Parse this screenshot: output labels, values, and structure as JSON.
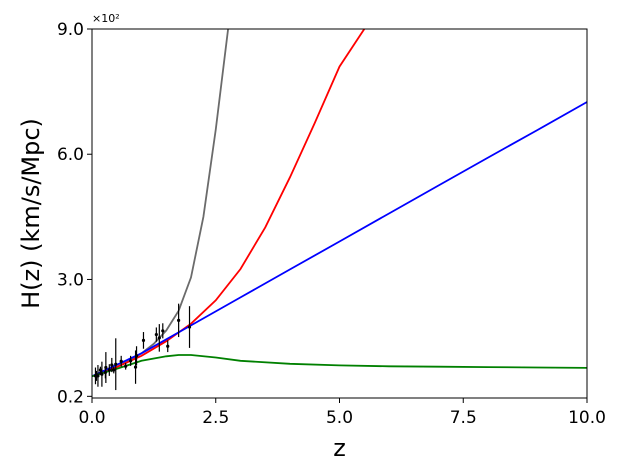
{
  "chart_data": {
    "type": "line",
    "title": "",
    "xlabel": "z",
    "ylabel": "H(z) (km/s/Mpc)",
    "xlim": [
      0,
      10
    ],
    "ylim": [
      0.16,
      9.0
    ],
    "y_scale_label": "×10²",
    "x_ticks": [
      {
        "value": 0,
        "label": "0.0"
      },
      {
        "value": 2.5,
        "label": "2.5"
      },
      {
        "value": 5,
        "label": "5.0"
      },
      {
        "value": 7.5,
        "label": "7.5"
      },
      {
        "value": 10,
        "label": "10.0"
      }
    ],
    "y_ticks": [
      {
        "value": 0.2,
        "label": "0.2"
      },
      {
        "value": 3.0,
        "label": "3.0"
      },
      {
        "value": 6.0,
        "label": "6.0"
      },
      {
        "value": 9.0,
        "label": "9.0"
      }
    ],
    "grid": false,
    "legend": "none",
    "series": [
      {
        "color": "#6b6b6b",
        "x": [
          0,
          0.25,
          0.5,
          0.75,
          1.0,
          1.25,
          1.5,
          1.75,
          2.0,
          2.25,
          2.5,
          2.75
        ],
        "y": [
          0.68,
          0.78,
          0.9,
          1.05,
          1.23,
          1.46,
          1.78,
          2.25,
          3.05,
          4.5,
          6.6,
          9.0
        ]
      },
      {
        "color": "#ff0000",
        "x": [
          0,
          0.5,
          1.0,
          1.5,
          2.0,
          2.5,
          3.0,
          3.5,
          4.0,
          4.5,
          5.0,
          5.5
        ],
        "y": [
          0.68,
          0.9,
          1.17,
          1.52,
          1.94,
          2.5,
          3.25,
          4.25,
          5.45,
          6.75,
          8.1,
          9.0
        ]
      },
      {
        "color": "#0000ff",
        "x": [
          0,
          1.0,
          2.0,
          3.0,
          4.0,
          5.0,
          6.0,
          7.0,
          8.0,
          9.0,
          10.0
        ],
        "y": [
          0.68,
          1.23,
          1.9,
          2.57,
          3.24,
          3.91,
          4.58,
          5.25,
          5.92,
          6.58,
          7.25
        ]
      },
      {
        "color": "#008000",
        "x": [
          0,
          0.5,
          1.0,
          1.5,
          1.75,
          2.0,
          2.5,
          3.0,
          4.0,
          5.0,
          6.0,
          7.0,
          8.0,
          9.0,
          10.0
        ],
        "y": [
          0.68,
          0.86,
          1.05,
          1.16,
          1.19,
          1.19,
          1.13,
          1.05,
          0.98,
          0.94,
          0.92,
          0.91,
          0.9,
          0.89,
          0.88
        ]
      }
    ],
    "observations": {
      "color": "#000000",
      "points": [
        {
          "x": 0.07,
          "y": 0.69,
          "err": 0.2
        },
        {
          "x": 0.09,
          "y": 0.69,
          "err": 0.12
        },
        {
          "x": 0.12,
          "y": 0.69,
          "err": 0.26
        },
        {
          "x": 0.17,
          "y": 0.83,
          "err": 0.08
        },
        {
          "x": 0.18,
          "y": 0.75,
          "err": 0.04
        },
        {
          "x": 0.2,
          "y": 0.73,
          "err": 0.3
        },
        {
          "x": 0.27,
          "y": 0.77,
          "err": 0.14
        },
        {
          "x": 0.28,
          "y": 0.89,
          "err": 0.37
        },
        {
          "x": 0.35,
          "y": 0.83,
          "err": 0.14
        },
        {
          "x": 0.4,
          "y": 0.95,
          "err": 0.17
        },
        {
          "x": 0.44,
          "y": 0.83,
          "err": 0.08
        },
        {
          "x": 0.48,
          "y": 0.97,
          "err": 0.62
        },
        {
          "x": 0.59,
          "y": 1.04,
          "err": 0.13
        },
        {
          "x": 0.68,
          "y": 0.92,
          "err": 0.08
        },
        {
          "x": 0.78,
          "y": 1.05,
          "err": 0.12
        },
        {
          "x": 0.88,
          "y": 0.9,
          "err": 0.4
        },
        {
          "x": 0.9,
          "y": 1.17,
          "err": 0.23
        },
        {
          "x": 1.04,
          "y": 1.54,
          "err": 0.2
        },
        {
          "x": 1.3,
          "y": 1.68,
          "err": 0.17
        },
        {
          "x": 1.36,
          "y": 1.6,
          "err": 0.33
        },
        {
          "x": 1.43,
          "y": 1.77,
          "err": 0.18
        },
        {
          "x": 1.53,
          "y": 1.4,
          "err": 0.14
        },
        {
          "x": 1.75,
          "y": 2.02,
          "err": 0.4
        },
        {
          "x": 1.97,
          "y": 1.86,
          "err": 0.5
        }
      ]
    }
  }
}
